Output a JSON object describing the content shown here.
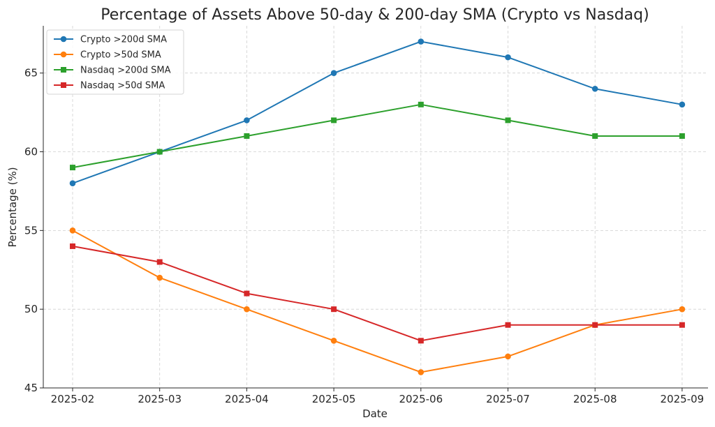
{
  "chart_data": {
    "type": "line",
    "title": "Percentage of Assets Above 50-day & 200-day SMA (Crypto vs Nasdaq)",
    "xlabel": "Date",
    "ylabel": "Percentage (%)",
    "x": [
      "2025-02",
      "2025-03",
      "2025-04",
      "2025-05",
      "2025-06",
      "2025-07",
      "2025-08",
      "2025-09"
    ],
    "ylim": [
      45,
      68
    ],
    "yticks": [
      45,
      50,
      55,
      60,
      65
    ],
    "grid": true,
    "legend_position": "top-left",
    "series": [
      {
        "name": "Crypto >200d SMA",
        "color": "#1f77b4",
        "marker": "circle",
        "values": [
          58,
          60,
          62,
          65,
          67,
          66,
          64,
          63
        ]
      },
      {
        "name": "Crypto >50d SMA",
        "color": "#ff7f0e",
        "marker": "circle",
        "values": [
          55,
          52,
          50,
          48,
          46,
          47,
          49,
          50
        ]
      },
      {
        "name": "Nasdaq >200d SMA",
        "color": "#2ca02c",
        "marker": "square",
        "values": [
          59,
          60,
          61,
          62,
          63,
          62,
          61,
          61
        ]
      },
      {
        "name": "Nasdaq >50d SMA",
        "color": "#d62728",
        "marker": "square",
        "values": [
          54,
          53,
          51,
          50,
          48,
          49,
          49,
          49
        ]
      }
    ]
  }
}
